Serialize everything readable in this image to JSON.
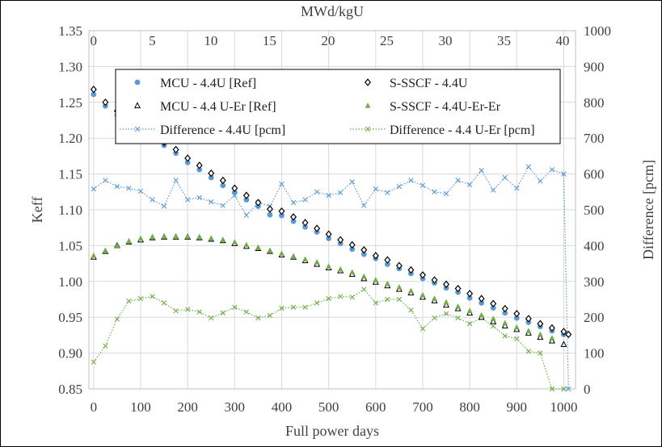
{
  "chart_data": {
    "type": "scatter",
    "xlabel": "Full power days",
    "x2label": "MWd/kgU",
    "ylabel": "Keff",
    "y2label": "Difference [pcm]",
    "xlim": [
      -10,
      1025
    ],
    "x2lim": [
      -0.4,
      41.1
    ],
    "ylim": [
      0.85,
      1.35
    ],
    "y2lim": [
      0,
      1000
    ],
    "x_ticks": [
      "0",
      "100",
      "200",
      "300",
      "400",
      "500",
      "600",
      "700",
      "800",
      "900",
      "1000"
    ],
    "x2_ticks": [
      "0",
      "5",
      "10",
      "15",
      "20",
      "25",
      "30",
      "35",
      "40"
    ],
    "y_ticks": [
      "0.85",
      "0.90",
      "0.95",
      "1.00",
      "1.05",
      "1.10",
      "1.15",
      "1.20",
      "1.25",
      "1.30",
      "1.35"
    ],
    "y2_ticks": [
      "0",
      "100",
      "200",
      "300",
      "400",
      "500",
      "600",
      "700",
      "800",
      "900",
      "1000"
    ],
    "grid": true,
    "legend_position": "top",
    "colors": {
      "mcu_44u": "#5b9bd5",
      "sscf_44u": "#000000",
      "mcu_44uer": "#000000",
      "sscf_44uer": "#70ad47",
      "diff_44u": "#5b9bd5",
      "diff_44uer": "#70ad47"
    },
    "series": [
      {
        "name": "MCU - 4.4U [Ref]",
        "axis": "left",
        "marker": "circle",
        "x": [
          0,
          25,
          50,
          75,
          100,
          125,
          150,
          175,
          200,
          225,
          250,
          275,
          300,
          325,
          350,
          375,
          400,
          425,
          450,
          475,
          500,
          525,
          550,
          575,
          600,
          625,
          650,
          675,
          700,
          725,
          750,
          775,
          800,
          825,
          850,
          875,
          900,
          925,
          950,
          975,
          1000
        ],
        "y": [
          1.261,
          1.245,
          1.232,
          1.222,
          1.211,
          1.201,
          1.19,
          1.179,
          1.166,
          1.156,
          1.145,
          1.134,
          1.124,
          1.114,
          1.105,
          1.093,
          1.092,
          1.084,
          1.076,
          1.069,
          1.06,
          1.053,
          1.045,
          1.038,
          1.032,
          1.024,
          1.018,
          1.011,
          1.004,
          0.998,
          0.991,
          0.985,
          0.977,
          0.97,
          0.963,
          0.956,
          0.949,
          0.943,
          0.937,
          0.931,
          0.926
        ]
      },
      {
        "name": "S-SSCF - 4.4U",
        "axis": "left",
        "marker": "diamond",
        "x": [
          0,
          25,
          50,
          75,
          100,
          125,
          150,
          175,
          200,
          225,
          250,
          275,
          300,
          325,
          350,
          375,
          400,
          425,
          450,
          475,
          500,
          525,
          550,
          575,
          600,
          625,
          650,
          675,
          700,
          725,
          750,
          775,
          800,
          825,
          850,
          875,
          900,
          925,
          950,
          975,
          1000,
          1010
        ],
        "y": [
          1.268,
          1.25,
          1.238,
          1.228,
          1.217,
          1.205,
          1.194,
          1.184,
          1.172,
          1.162,
          1.151,
          1.141,
          1.13,
          1.12,
          1.11,
          1.101,
          1.098,
          1.09,
          1.082,
          1.074,
          1.066,
          1.058,
          1.051,
          1.044,
          1.036,
          1.03,
          1.022,
          1.016,
          1.009,
          1.002,
          0.996,
          0.99,
          0.983,
          0.976,
          0.969,
          0.962,
          0.955,
          0.948,
          0.941,
          0.935,
          0.93,
          0.926
        ]
      },
      {
        "name": "MCU - 4.4 U-Er [Ref]",
        "axis": "left",
        "marker": "triangle-open",
        "x": [
          0,
          25,
          50,
          75,
          100,
          125,
          150,
          175,
          200,
          225,
          250,
          275,
          300,
          325,
          350,
          375,
          400,
          425,
          450,
          475,
          500,
          525,
          550,
          575,
          600,
          625,
          650,
          675,
          700,
          725,
          750,
          775,
          800,
          825,
          850,
          875,
          900,
          925,
          950,
          975,
          1000
        ],
        "y": [
          1.034,
          1.042,
          1.05,
          1.055,
          1.058,
          1.061,
          1.062,
          1.062,
          1.062,
          1.061,
          1.059,
          1.057,
          1.053,
          1.049,
          1.046,
          1.042,
          1.037,
          1.034,
          1.029,
          1.024,
          1.019,
          1.015,
          1.01,
          1.004,
          0.999,
          0.994,
          0.989,
          0.984,
          0.978,
          0.973,
          0.967,
          0.962,
          0.956,
          0.95,
          0.944,
          0.938,
          0.933,
          0.928,
          0.922,
          0.917,
          0.912
        ]
      },
      {
        "name": "S-SSCF - 4.4U-Er-Er",
        "axis": "left",
        "marker": "triangle-filled",
        "x": [
          0,
          25,
          50,
          75,
          100,
          125,
          150,
          175,
          200,
          225,
          250,
          275,
          300,
          325,
          350,
          375,
          400,
          425,
          450,
          475,
          500,
          525,
          550,
          575,
          600,
          625,
          650,
          675,
          700,
          725,
          750,
          775,
          800,
          825,
          850,
          875,
          900,
          925,
          950,
          975
        ],
        "y": [
          1.036,
          1.043,
          1.05,
          1.056,
          1.06,
          1.062,
          1.063,
          1.063,
          1.063,
          1.062,
          1.06,
          1.058,
          1.055,
          1.051,
          1.047,
          1.043,
          1.039,
          1.035,
          1.031,
          1.027,
          1.021,
          1.017,
          1.013,
          1.007,
          1.002,
          0.997,
          0.992,
          0.987,
          0.981,
          0.976,
          0.971,
          0.965,
          0.959,
          0.953,
          0.948,
          0.942,
          0.936,
          0.931,
          0.926,
          0.921
        ]
      },
      {
        "name": "Difference - 4.4U [pcm]",
        "axis": "right",
        "marker": "x",
        "line": "dotted",
        "x": [
          0,
          25,
          50,
          75,
          100,
          125,
          150,
          175,
          200,
          225,
          250,
          275,
          300,
          325,
          350,
          375,
          400,
          425,
          450,
          475,
          500,
          525,
          550,
          575,
          600,
          625,
          650,
          675,
          700,
          725,
          750,
          775,
          800,
          825,
          850,
          875,
          900,
          925,
          950,
          975,
          1000,
          1010
        ],
        "y": [
          558,
          582,
          565,
          560,
          552,
          528,
          510,
          582,
          528,
          534,
          522,
          512,
          540,
          485,
          520,
          510,
          572,
          520,
          528,
          550,
          540,
          548,
          578,
          512,
          558,
          548,
          565,
          582,
          568,
          550,
          545,
          582,
          570,
          610,
          555,
          590,
          560,
          620,
          580,
          612,
          600,
          0
        ]
      },
      {
        "name": "Difference - 4.4 U-Er [pcm]",
        "axis": "right",
        "marker": "x",
        "line": "dotted",
        "x": [
          0,
          25,
          50,
          75,
          100,
          125,
          150,
          175,
          200,
          225,
          250,
          275,
          300,
          325,
          350,
          375,
          400,
          425,
          450,
          475,
          500,
          525,
          550,
          575,
          600,
          625,
          650,
          675,
          700,
          725,
          750,
          775,
          800,
          825,
          850,
          875,
          900,
          925,
          950,
          975,
          1000
        ],
        "y": [
          75,
          120,
          195,
          245,
          252,
          258,
          240,
          218,
          222,
          215,
          198,
          212,
          228,
          215,
          198,
          205,
          225,
          228,
          228,
          240,
          252,
          258,
          256,
          278,
          240,
          250,
          250,
          220,
          168,
          198,
          210,
          198,
          182,
          198,
          175,
          148,
          140,
          105,
          100,
          0,
          0
        ]
      }
    ]
  }
}
